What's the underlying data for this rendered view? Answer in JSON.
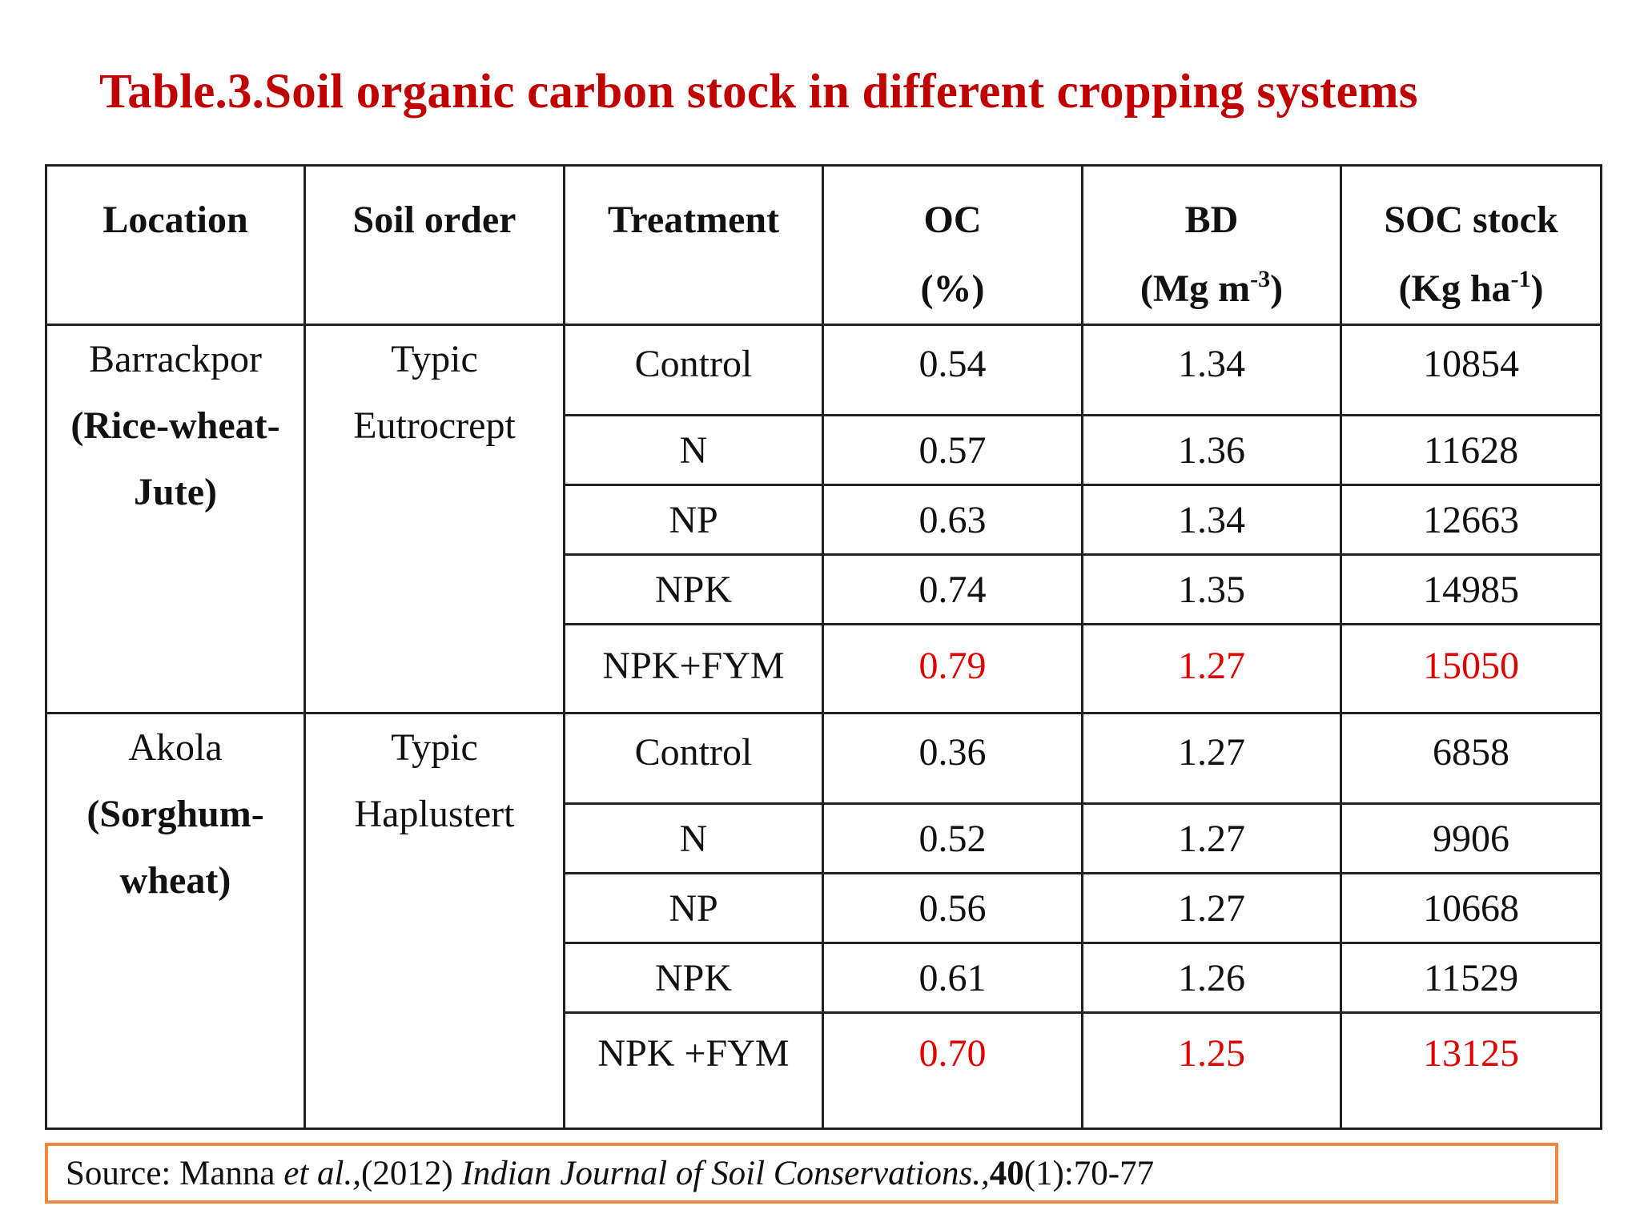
{
  "title": "Table.3.Soil organic carbon stock in different cropping systems",
  "headers": {
    "location": "Location",
    "soil_order": "Soil order",
    "treatment": "Treatment",
    "oc_line1": "OC",
    "oc_line2": "(%)",
    "bd_line1": "BD",
    "bd_line2_pre": "(Mg m",
    "bd_line2_sup": "-3",
    "bd_line2_post": ")",
    "soc_line1": "SOC stock",
    "soc_line2_pre": "(Kg ha",
    "soc_line2_sup": "-1",
    "soc_line2_post": ")"
  },
  "groups": [
    {
      "location_name": "Barrackpor",
      "location_bold_1": "(Rice-wheat-",
      "location_bold_2": "Jute)",
      "soil_order_1": "Typic",
      "soil_order_2": "Eutrocrept",
      "rows": [
        {
          "treatment": "Control",
          "oc": "0.54",
          "bd": "1.34",
          "soc": "10854"
        },
        {
          "treatment": "N",
          "oc": "0.57",
          "bd": "1.36",
          "soc": "11628"
        },
        {
          "treatment": "NP",
          "oc": "0.63",
          "bd": "1.34",
          "soc": "12663"
        },
        {
          "treatment": "NPK",
          "oc": "0.74",
          "bd": "1.35",
          "soc": "14985"
        },
        {
          "treatment": "NPK+FYM",
          "oc": "0.79",
          "bd": "1.27",
          "soc": "15050"
        }
      ]
    },
    {
      "location_name": "Akola",
      "location_bold_1": "(Sorghum-",
      "location_bold_2": "wheat)",
      "soil_order_1": "Typic",
      "soil_order_2": "Haplustert",
      "rows": [
        {
          "treatment": "Control",
          "oc": "0.36",
          "bd": "1.27",
          "soc": "6858"
        },
        {
          "treatment": "N",
          "oc": "0.52",
          "bd": "1.27",
          "soc": "9906"
        },
        {
          "treatment": "NP",
          "oc": "0.56",
          "bd": "1.27",
          "soc": "10668"
        },
        {
          "treatment": "NPK",
          "oc": "0.61",
          "bd": "1.26",
          "soc": "11529"
        },
        {
          "treatment": "NPK +FYM",
          "oc": "0.70",
          "bd": "1.25",
          "soc": "13125"
        }
      ]
    }
  ],
  "highlight_color": "#e00000",
  "source": {
    "prefix": "Source: Manna ",
    "etal": "et al.,",
    "year": "(2012) ",
    "journal": "Indian Journal of  Soil  Conservations.,",
    "volume": "40",
    "issue_pages": "(1):70-77"
  }
}
